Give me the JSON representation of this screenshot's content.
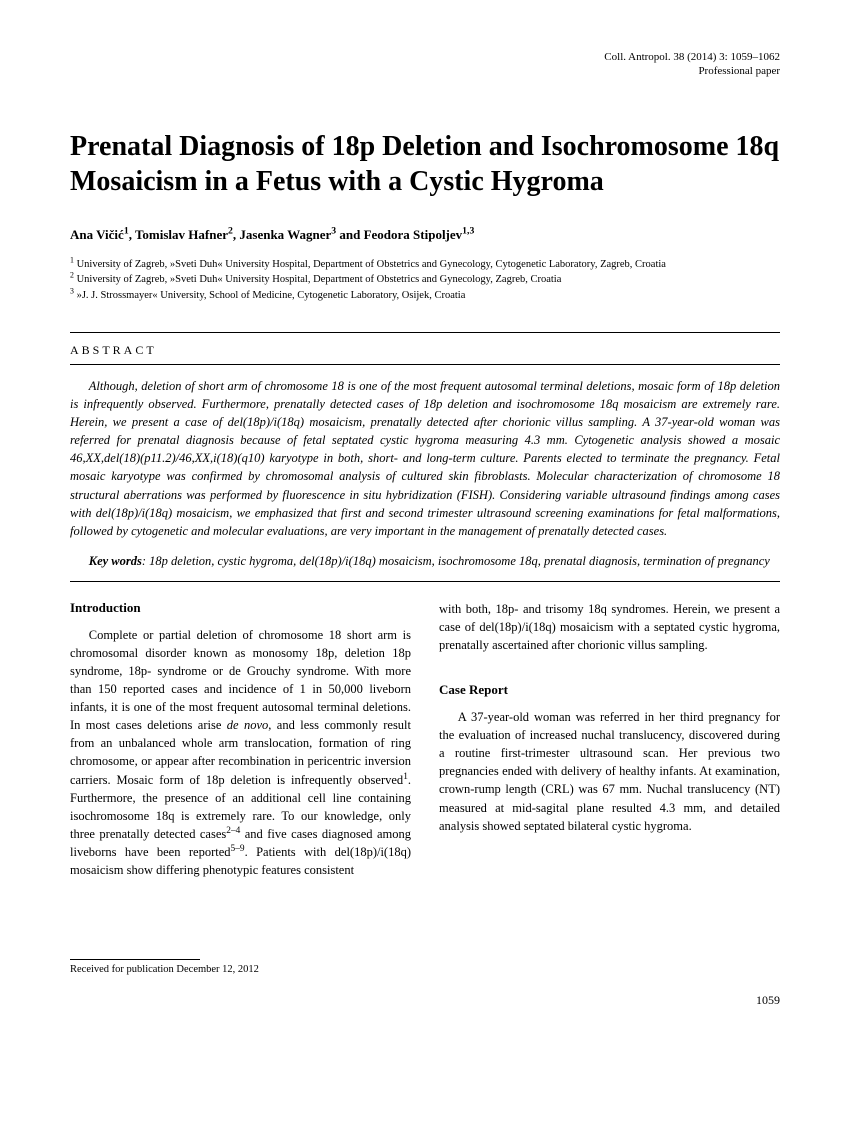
{
  "header": {
    "citation": "Coll. Antropol. 38 (2014) 3: 1059–1062",
    "paper_type": "Professional paper"
  },
  "title": "Prenatal Diagnosis of 18p Deletion and Isochromosome 18q Mosaicism in a Fetus with a Cystic Hygroma",
  "authors_html": "Ana Vičić<sup>1</sup>, Tomislav Hafner<sup>2</sup>, Jasenka Wagner<sup>3</sup> and Feodora Stipoljev<sup>1,3</sup>",
  "affiliations": [
    "<sup>1</sup> University of Zagreb, »Sveti Duh« University Hospital, Department of Obstetrics and Gynecology, Cytogenetic Laboratory, Zagreb, Croatia",
    "<sup>2</sup> University of Zagreb, »Sveti Duh« University Hospital, Department of Obstetrics and Gynecology, Zagreb, Croatia",
    "<sup>3</sup> »J. J. Strossmayer« University, School of Medicine, Cytogenetic Laboratory, Osijek, Croatia"
  ],
  "abstract": {
    "heading": "ABSTRACT",
    "body": "Although, deletion of short arm of chromosome 18 is one of the most frequent autosomal terminal deletions, mosaic form of 18p deletion is infrequently observed. Furthermore, prenatally detected cases of 18p deletion and isochromosome 18q mosaicism are extremely rare. Herein, we present a case of del(18p)/i(18q) mosaicism, prenatally detected after chorionic villus sampling. A 37-year-old woman was referred for prenatal diagnosis because of fetal septated cystic hygroma measuring 4.3 mm. Cytogenetic analysis showed a mosaic 46,XX,del(18)(p11.2)/46,XX,i(18)(q10) karyotype in both, short- and long-term culture. Parents elected to terminate the pregnancy. Fetal mosaic karyotype was confirmed by chromosomal analysis of cultured skin fibroblasts. Molecular characterization of chromosome 18 structural aberrations was performed by fluorescence in situ hybridization (FISH). Considering variable ultrasound findings among cases with del(18p)/i(18q) mosaicism, we emphasized that first and second trimester ultrasound screening examinations for fetal malformations, followed by cytogenetic and molecular evaluations, are very important in the management of prenatally detected cases.",
    "keywords_label": "Key words",
    "keywords": ": 18p deletion, cystic hygroma, del(18p)/i(18q) mosaicism, isochromosome 18q, prenatal diagnosis, termination of pregnancy"
  },
  "body": {
    "intro_heading": "Introduction",
    "intro_col1": "Complete or partial deletion of chromosome 18 short arm is chromosomal disorder known as monosomy 18p, deletion 18p syndrome, 18p- syndrome or de Grouchy syndrome. With more than 150 reported cases and incidence of 1 in 50,000 liveborn infants, it is one of the most frequent autosomal terminal deletions. In most cases deletions arise <i>de novo</i>, and less commonly result from an unbalanced whole arm translocation, formation of ring chromosome, or appear after recombination in pericentric inversion carriers. Mosaic form of 18p deletion is infrequently observed<sup>1</sup>. Furthermore, the presence of an additional cell line containing isochromosome 18q is extremely rare. To our knowledge, only three prenatally detected cases<sup>2–4</sup> and five cases diagnosed among liveborns have been reported<sup>5–9</sup>. Patients with del(18p)/i(18q) mosaicism show differing phenotypic features consistent",
    "intro_col2_top": "with both, 18p- and trisomy 18q syndromes. Herein, we present a case of del(18p)/i(18q) mosaicism with a septated cystic hygroma, prenatally ascertained after chorionic villus sampling.",
    "case_heading": "Case Report",
    "case_body": "A 37-year-old woman was referred in her third pregnancy for the evaluation of increased nuchal translucency, discovered during a routine first-trimester ultrasound scan. Her previous two pregnancies ended with delivery of healthy infants. At examination, crown-rump length (CRL) was 67 mm. Nuchal translucency (NT) measured at mid-sagital plane resulted 4.3 mm, and detailed analysis showed septated bilateral cystic hygroma."
  },
  "footer": {
    "received": "Received for publication December 12, 2012",
    "page_number": "1059"
  }
}
